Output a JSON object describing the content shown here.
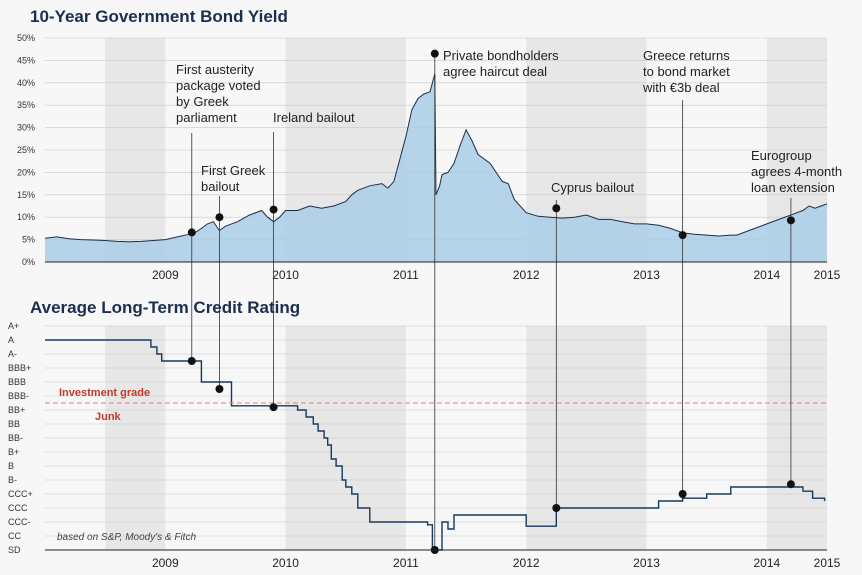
{
  "chart_data": [
    {
      "type": "area",
      "title": "10-Year Government Bond Yield",
      "x_unit": "year",
      "xlim": [
        2008.5,
        2015.0
      ],
      "ylim": [
        0,
        50
      ],
      "y_ticks": [
        "0%",
        "5%",
        "10%",
        "15%",
        "20%",
        "25%",
        "30%",
        "35%",
        "40%",
        "45%",
        "50%"
      ],
      "year_labels": [
        "2009",
        "2010",
        "2011",
        "2012",
        "2013",
        "2014",
        "2015"
      ],
      "shaded_year_bands": [
        [
          2009.0,
          2009.5
        ],
        [
          2010.5,
          2011.5
        ],
        [
          2012.5,
          2013.5
        ],
        [
          2014.5,
          2015.0
        ]
      ],
      "grid": true,
      "series": [
        {
          "x": [
            2008.5,
            2008.6,
            2008.7,
            2008.8,
            2008.9,
            2009.0,
            2009.1,
            2009.2,
            2009.3,
            2009.4,
            2009.5,
            2009.6,
            2009.7,
            2009.75,
            2009.8,
            2009.85,
            2009.9,
            2009.95,
            2010.0,
            2010.1,
            2010.2,
            2010.3,
            2010.35,
            2010.4,
            2010.45,
            2010.5,
            2010.6,
            2010.7,
            2010.8,
            2010.9,
            2011.0,
            2011.05,
            2011.1,
            2011.2,
            2011.3,
            2011.35,
            2011.4,
            2011.45,
            2011.5,
            2011.55,
            2011.6,
            2011.65,
            2011.7,
            2011.72,
            2011.74,
            2011.75,
            2011.78,
            2011.8,
            2011.85,
            2011.9,
            2011.95,
            2012.0,
            2012.05,
            2012.1,
            2012.2,
            2012.3,
            2012.35,
            2012.4,
            2012.5,
            2012.6,
            2012.7,
            2012.8,
            2012.9,
            2013.0,
            2013.1,
            2013.2,
            2013.3,
            2013.4,
            2013.5,
            2013.6,
            2013.7,
            2013.8,
            2013.9,
            2014.0,
            2014.1,
            2014.2,
            2014.25,
            2014.3,
            2014.4,
            2014.5,
            2014.6,
            2014.7,
            2014.75,
            2014.8,
            2014.85,
            2014.9,
            2014.95,
            2015.0
          ],
          "y": [
            5.3,
            5.6,
            5.2,
            5.0,
            4.9,
            4.8,
            4.6,
            4.5,
            4.6,
            4.8,
            5.0,
            5.6,
            6.2,
            6.6,
            7.5,
            8.5,
            9.0,
            7.0,
            8.0,
            9.0,
            10.5,
            11.5,
            10.0,
            9.0,
            10.0,
            11.5,
            11.5,
            12.5,
            12.0,
            12.5,
            13.5,
            15.0,
            16.0,
            17.0,
            17.5,
            16.5,
            18.0,
            23.0,
            28.0,
            34.0,
            36.5,
            37.5,
            38.0,
            40.0,
            42.0,
            15.0,
            17.0,
            19.5,
            20.0,
            22.0,
            26.0,
            29.5,
            27.0,
            24.0,
            22.0,
            18.0,
            17.5,
            14.0,
            11.0,
            10.2,
            10.0,
            9.8,
            10.0,
            10.5,
            9.5,
            9.5,
            9.0,
            8.5,
            8.5,
            8.2,
            7.5,
            6.5,
            6.2,
            6.0,
            5.8,
            6.0,
            6.0,
            6.5,
            7.5,
            8.5,
            9.5,
            10.5,
            11.0,
            11.5,
            12.5,
            12.0,
            12.5,
            13.0
          ],
          "unit": "%"
        }
      ],
      "annotations": [
        {
          "label": "First austerity package voted by Greek parliament",
          "lines": [
            "First austerity",
            "package voted",
            "by Greek",
            "parliament"
          ],
          "x": 2009.72,
          "y": 6.6
        },
        {
          "label": "First Greek bailout",
          "lines": [
            "First Greek",
            "bailout"
          ],
          "x": 2009.95,
          "y": 10.0
        },
        {
          "label": "Ireland bailout",
          "lines": [
            "Ireland bailout"
          ],
          "x": 2010.4,
          "y": 11.7
        },
        {
          "label": "Private bondholders agree haircut deal",
          "lines": [
            "Private bondholders",
            "agree haircut deal"
          ],
          "x": 2011.74,
          "y": 46.5
        },
        {
          "label": "Cyprus bailout",
          "lines": [
            "Cyprus bailout"
          ],
          "x": 2012.75,
          "y": 12.0
        },
        {
          "label": "Greece returns to bond market with €3b deal",
          "lines": [
            "Greece returns",
            "to bond market",
            "with €3b deal"
          ],
          "x": 2013.8,
          "y": 6.0
        },
        {
          "label": "Eurogroup agrees 4-month loan extension",
          "lines": [
            "Eurogroup",
            "agrees 4-month",
            "loan extension"
          ],
          "x": 2014.7,
          "y": 9.3
        }
      ]
    },
    {
      "type": "line",
      "title": "Average Long-Term Credit Rating",
      "x_unit": "year",
      "xlim": [
        2008.5,
        2015.0
      ],
      "y_categories": [
        "A+",
        "A",
        "A-",
        "BBB+",
        "BBB",
        "BBB-",
        "BB+",
        "BB",
        "BB-",
        "B+",
        "B",
        "B-",
        "CCC+",
        "CCC",
        "CCC-",
        "CC",
        "SD"
      ],
      "year_labels": [
        "2009",
        "2010",
        "2011",
        "2012",
        "2013",
        "2014",
        "2015"
      ],
      "shaded_year_bands": [
        [
          2009.0,
          2009.5
        ],
        [
          2010.5,
          2011.5
        ],
        [
          2012.5,
          2013.5
        ],
        [
          2014.5,
          2015.0
        ]
      ],
      "grid": true,
      "threshold": {
        "between": [
          "BBB-",
          "BB+"
        ],
        "above_label": "Investment grade",
        "below_label": "Junk"
      },
      "note": "based on S&P, Moody's & Fitch",
      "series": [
        {
          "x": [
            2008.5,
            2009.33,
            2009.38,
            2009.43,
            2009.47,
            2009.72,
            2009.8,
            2009.95,
            2010.05,
            2010.4,
            2010.6,
            2010.67,
            2010.73,
            2010.77,
            2010.82,
            2010.85,
            2010.88,
            2010.92,
            2010.97,
            2011.0,
            2011.05,
            2011.1,
            2011.2,
            2011.5,
            2011.68,
            2011.72,
            2011.75,
            2011.8,
            2011.85,
            2011.9,
            2012.0,
            2012.3,
            2012.45,
            2012.5,
            2012.7,
            2012.75,
            2013.2,
            2013.6,
            2013.8,
            2014.0,
            2014.2,
            2014.5,
            2014.7,
            2014.8,
            2014.88,
            2014.98
          ],
          "rating_index": [
            1.0,
            1.0,
            1.5,
            2.0,
            2.5,
            2.5,
            4.0,
            4.0,
            5.7,
            5.7,
            6.0,
            6.5,
            7.0,
            7.5,
            8.0,
            8.5,
            9.5,
            10.0,
            11.0,
            11.5,
            12.0,
            13.0,
            14.0,
            14.0,
            14.2,
            16.0,
            16.0,
            14.0,
            14.5,
            13.5,
            13.5,
            13.5,
            13.5,
            14.3,
            14.3,
            13.0,
            13.0,
            12.5,
            12.3,
            12.0,
            11.5,
            11.5,
            11.5,
            11.8,
            12.3,
            12.5
          ],
          "annotation_points": [
            {
              "x": 2009.72,
              "rating_index": 2.5
            },
            {
              "x": 2009.95,
              "rating_index": 4.5
            },
            {
              "x": 2010.4,
              "rating_index": 5.8
            },
            {
              "x": 2011.74,
              "rating_index": 16.0
            },
            {
              "x": 2012.75,
              "rating_index": 13.0
            },
            {
              "x": 2013.8,
              "rating_index": 12.0
            },
            {
              "x": 2014.7,
              "rating_index": 11.3
            }
          ]
        }
      ]
    }
  ],
  "colors": {
    "area_fill": "#a9cde6",
    "area_line": "#1a2f4e",
    "rating_line": "#163a5f",
    "band": "#e7e7e7",
    "grid": "#c8c8c8",
    "threshold": "#e57b74",
    "title": "#1a2f4e"
  }
}
